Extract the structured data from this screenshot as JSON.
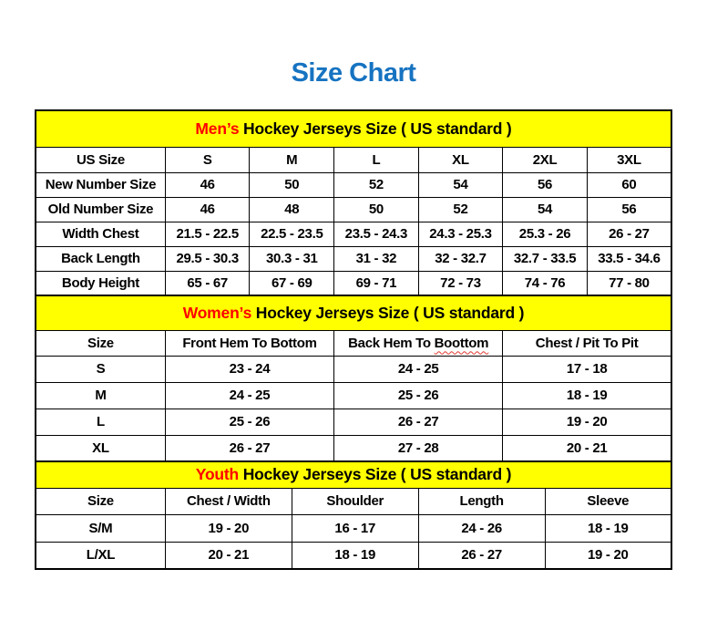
{
  "page": {
    "title": "Size Chart"
  },
  "colors": {
    "title_blue": "#1673C1",
    "band_yellow": "#FFFF00",
    "accent_red": "#FF0000",
    "border_black": "#000000"
  },
  "mens": {
    "band": {
      "highlight": "Men’s",
      "rest": " Hockey Jerseys Size ( US standard )"
    },
    "columns": [
      "US Size",
      "S",
      "M",
      "L",
      "XL",
      "2XL",
      "3XL"
    ],
    "rows": [
      {
        "label": "New Number Size",
        "values": [
          "46",
          "50",
          "52",
          "54",
          "56",
          "60"
        ]
      },
      {
        "label": "Old Number Size",
        "values": [
          "46",
          "48",
          "50",
          "52",
          "54",
          "56"
        ]
      },
      {
        "label": "Width Chest",
        "values": [
          "21.5 - 22.5",
          "22.5 - 23.5",
          "23.5 - 24.3",
          "24.3 - 25.3",
          "25.3 - 26",
          "26 - 27"
        ]
      },
      {
        "label": "Back Length",
        "values": [
          "29.5 - 30.3",
          "30.3 - 31",
          "31 - 32",
          "32 - 32.7",
          "32.7 - 33.5",
          "33.5 - 34.6"
        ]
      },
      {
        "label": "Body Height",
        "values": [
          "65 - 67",
          "67 - 69",
          "69 - 71",
          "72 - 73",
          "74 - 76",
          "77 - 80"
        ]
      }
    ]
  },
  "womens": {
    "band": {
      "highlight": "Women’s",
      "rest": " Hockey Jerseys Size ( US standard )"
    },
    "columns": {
      "c0": "Size",
      "c1": "Front Hem To Bottom",
      "c2_prefix": "Back Hem To ",
      "c2_word": "Boottom",
      "c3": "Chest / Pit To Pit"
    },
    "rows": [
      {
        "label": "S",
        "values": [
          "23 - 24",
          "24 - 25",
          "17 - 18"
        ]
      },
      {
        "label": "M",
        "values": [
          "24 - 25",
          "25 - 26",
          "18 - 19"
        ]
      },
      {
        "label": "L",
        "values": [
          "25 - 26",
          "26 - 27",
          "19 - 20"
        ]
      },
      {
        "label": "XL",
        "values": [
          "26 - 27",
          "27 - 28",
          "20 - 21"
        ]
      }
    ]
  },
  "youth": {
    "band": {
      "highlight": "Youth",
      "rest": " Hockey Jerseys Size ( US standard )"
    },
    "columns": [
      "Size",
      "Chest / Width",
      "Shoulder",
      "Length",
      "Sleeve"
    ],
    "rows": [
      {
        "label": "S/M",
        "values": [
          "19 - 20",
          "16 - 17",
          "24 - 26",
          "18 - 19"
        ]
      },
      {
        "label": "L/XL",
        "values": [
          "20 - 21",
          "18 - 19",
          "26 - 27",
          "19 - 20"
        ]
      }
    ]
  }
}
